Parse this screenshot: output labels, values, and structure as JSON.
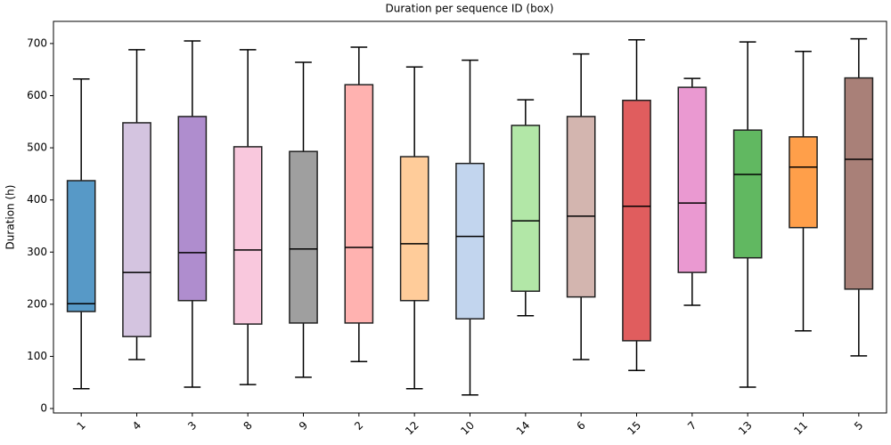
{
  "chart_data": {
    "type": "box",
    "title": "Duration per sequence ID (box)",
    "y_label": "Duration (h)",
    "categories": [
      "1",
      "4",
      "3",
      "8",
      "9",
      "2",
      "12",
      "10",
      "14",
      "6",
      "15",
      "7",
      "13",
      "11",
      "5"
    ],
    "boxes": [
      {
        "low": 38,
        "q1": 186,
        "median": 201,
        "q3": 437,
        "high": 632,
        "color": "#1f77b4"
      },
      {
        "low": 94,
        "q1": 138,
        "median": 261,
        "q3": 548,
        "high": 688,
        "color": "#c5b0d5"
      },
      {
        "low": 41,
        "q1": 207,
        "median": 299,
        "q3": 560,
        "high": 705,
        "color": "#9467bd"
      },
      {
        "low": 46,
        "q1": 162,
        "median": 304,
        "q3": 502,
        "high": 688,
        "color": "#f7b6d2"
      },
      {
        "low": 60,
        "q1": 164,
        "median": 306,
        "q3": 493,
        "high": 664,
        "color": "#7f7f7f"
      },
      {
        "low": 90,
        "q1": 164,
        "median": 309,
        "q3": 621,
        "high": 693,
        "color": "#ff9896"
      },
      {
        "low": 38,
        "q1": 207,
        "median": 316,
        "q3": 483,
        "high": 655,
        "color": "#ffbb78"
      },
      {
        "low": 26,
        "q1": 172,
        "median": 330,
        "q3": 470,
        "high": 668,
        "color": "#aec7e8"
      },
      {
        "low": 178,
        "q1": 225,
        "median": 360,
        "q3": 543,
        "high": 592,
        "color": "#98df8a"
      },
      {
        "low": 94,
        "q1": 214,
        "median": 369,
        "q3": 560,
        "high": 680,
        "color": "#c49c94"
      },
      {
        "low": 73,
        "q1": 130,
        "median": 388,
        "q3": 591,
        "high": 707,
        "color": "#d62728"
      },
      {
        "low": 198,
        "q1": 261,
        "median": 394,
        "q3": 616,
        "high": 633,
        "color": "#e377c2"
      },
      {
        "low": 41,
        "q1": 289,
        "median": 449,
        "q3": 534,
        "high": 703,
        "color": "#2ca02c"
      },
      {
        "low": 149,
        "q1": 347,
        "median": 463,
        "q3": 521,
        "high": 685,
        "color": "#ff7f0e"
      },
      {
        "low": 101,
        "q1": 229,
        "median": 478,
        "q3": 634,
        "high": 709,
        "color": "#8c564b"
      }
    ],
    "ylim": [
      -8.5,
      742.5
    ],
    "yticks": [
      0,
      100,
      200,
      300,
      400,
      500,
      600,
      700
    ]
  }
}
